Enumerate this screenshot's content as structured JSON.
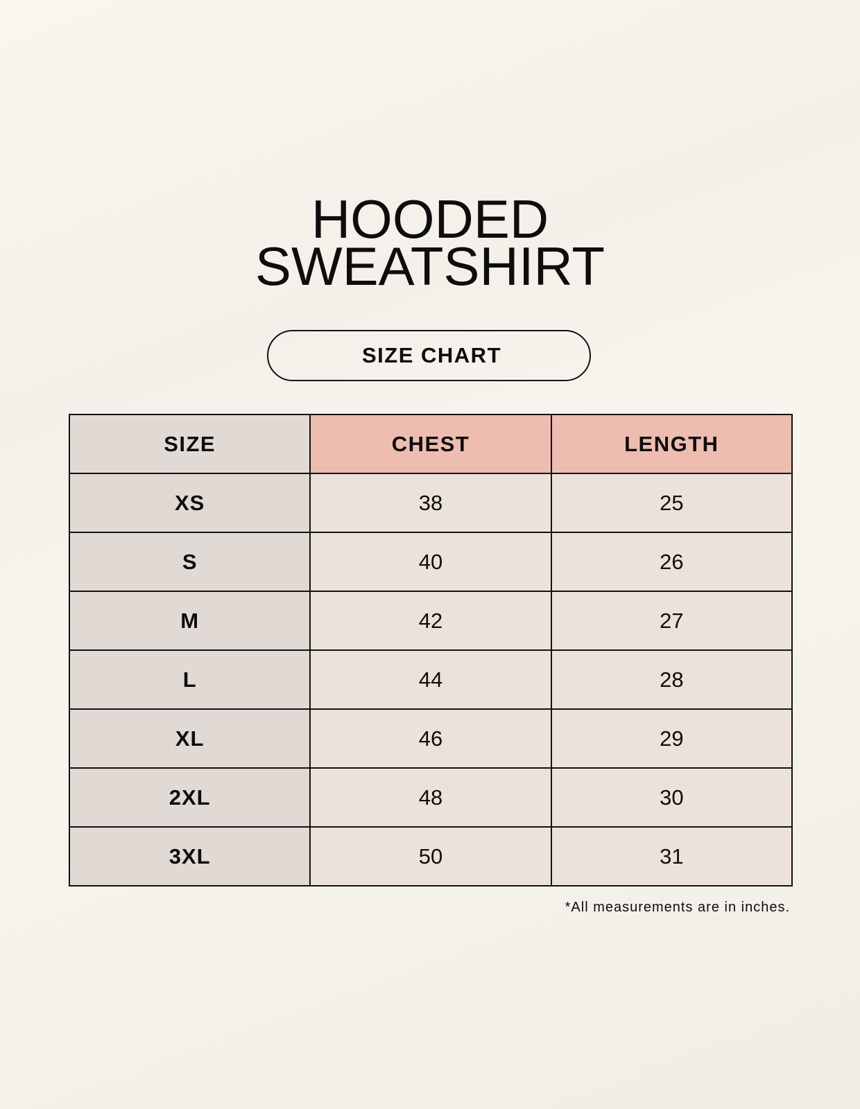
{
  "title": {
    "line1": "HOODED",
    "line2": "SWEATSHIRT"
  },
  "badge": "SIZE CHART",
  "table": {
    "headers": [
      "SIZE",
      "CHEST",
      "LENGTH"
    ],
    "rows": [
      [
        "XS",
        "38",
        "25"
      ],
      [
        "S",
        "40",
        "26"
      ],
      [
        "M",
        "42",
        "27"
      ],
      [
        "L",
        "44",
        "28"
      ],
      [
        "XL",
        "46",
        "29"
      ],
      [
        "2XL",
        "48",
        "30"
      ],
      [
        "3XL",
        "50",
        "31"
      ]
    ]
  },
  "footnote": "*All measurements are in inches.",
  "colors": {
    "header_accent": "#edbdb0",
    "size_column": "#e0d9d4",
    "value_cells": "#ebe3da"
  }
}
